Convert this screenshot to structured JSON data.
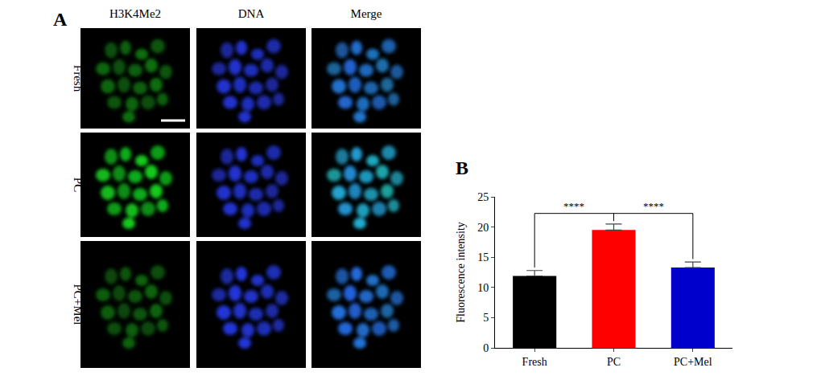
{
  "panel_a": {
    "label": "A",
    "columns": [
      "H3K4Me2",
      "DNA",
      "Merge"
    ],
    "rows": [
      "Fresh",
      "PC",
      "PC+Mel"
    ]
  },
  "panel_b": {
    "label": "B"
  },
  "chart_data": {
    "type": "bar",
    "categories": [
      "Fresh",
      "PC",
      "PC+Mel"
    ],
    "values": [
      11.9,
      19.5,
      13.3
    ],
    "errors": [
      0.9,
      1.0,
      0.9
    ],
    "colors": [
      "#000000",
      "#ff0000",
      "#0000cc"
    ],
    "ylabel": "Fluorescence intensity",
    "ylim": [
      0,
      25
    ],
    "yticks": [
      0,
      5,
      10,
      15,
      20,
      25
    ],
    "grid": false,
    "annotations": [
      {
        "text": "****",
        "from": "Fresh",
        "to": "PC"
      },
      {
        "text": "****",
        "from": "PC",
        "to": "PC+Mel"
      }
    ]
  }
}
